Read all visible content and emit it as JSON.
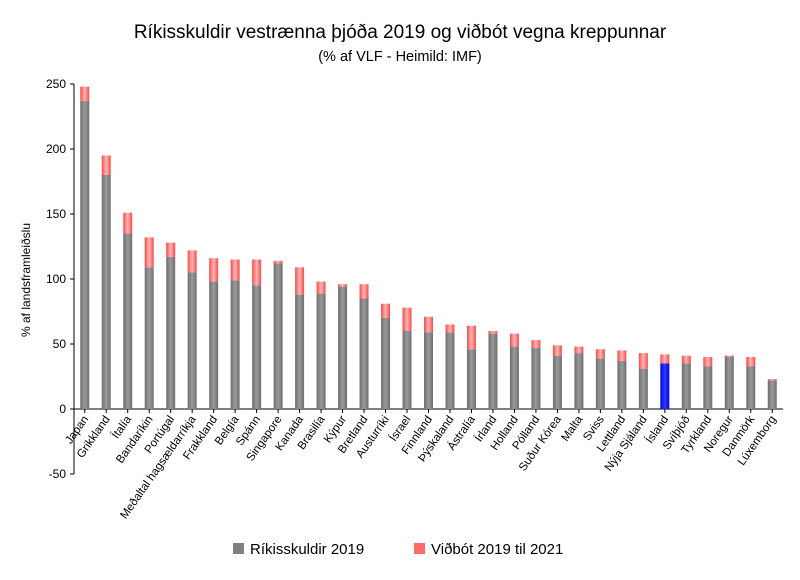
{
  "chart_data": {
    "type": "bar",
    "stacked": true,
    "title": "Ríkisskuldir vestrænna þjóða 2019 og viðbót vegna kreppunnar",
    "subtitle": "(% af VLF - Heimild: IMF)",
    "xlabel": "",
    "ylabel": "% af landsframleiðslu",
    "ylim": [
      -50,
      250
    ],
    "yticks": [
      -50,
      0,
      50,
      100,
      150,
      200,
      250
    ],
    "grid": false,
    "legend_position": "bottom",
    "categories": [
      "Japan",
      "Grikkland",
      "Ítalía",
      "Bandaríkin",
      "Portúgal",
      "Meðaltal hagsældarríkja",
      "Frakkland",
      "Belgía",
      "Spánn",
      "Singapore",
      "Kanada",
      "Brasilía",
      "Kýpur",
      "Bretland",
      "Austurríki",
      "Ísrael",
      "Finnland",
      "Þýskaland",
      "Ástralía",
      "Írland",
      "Holland",
      "Pólland",
      "Suður Kórea",
      "Malta",
      "Sviss",
      "Lettland",
      "Nýja Sjáland",
      "Ísland",
      "Svíþjóð",
      "Tyrkland",
      "Noregur",
      "Danmörk",
      "Lúxemborg"
    ],
    "highlight_category": "Ísland",
    "highlight_color": "#0000ff",
    "series": [
      {
        "name": "Ríkisskuldir 2019",
        "color": "#808080",
        "values": [
          237,
          180,
          135,
          109,
          117,
          105,
          98,
          99,
          95,
          112,
          88,
          89,
          94,
          85,
          70,
          60,
          59,
          59,
          46,
          58,
          48,
          47,
          41,
          43,
          39,
          37,
          31,
          35,
          35,
          33,
          41,
          33,
          22
        ]
      },
      {
        "name": "Viðbót 2019 til 2021",
        "color": "#ff6b6b",
        "values": [
          11,
          15,
          16,
          23,
          11,
          17,
          18,
          16,
          20,
          2,
          21,
          9,
          2,
          11,
          11,
          18,
          12,
          6,
          18,
          2,
          10,
          6,
          8,
          5,
          7,
          8,
          12,
          7,
          6,
          7,
          -1,
          7,
          1
        ]
      }
    ]
  }
}
